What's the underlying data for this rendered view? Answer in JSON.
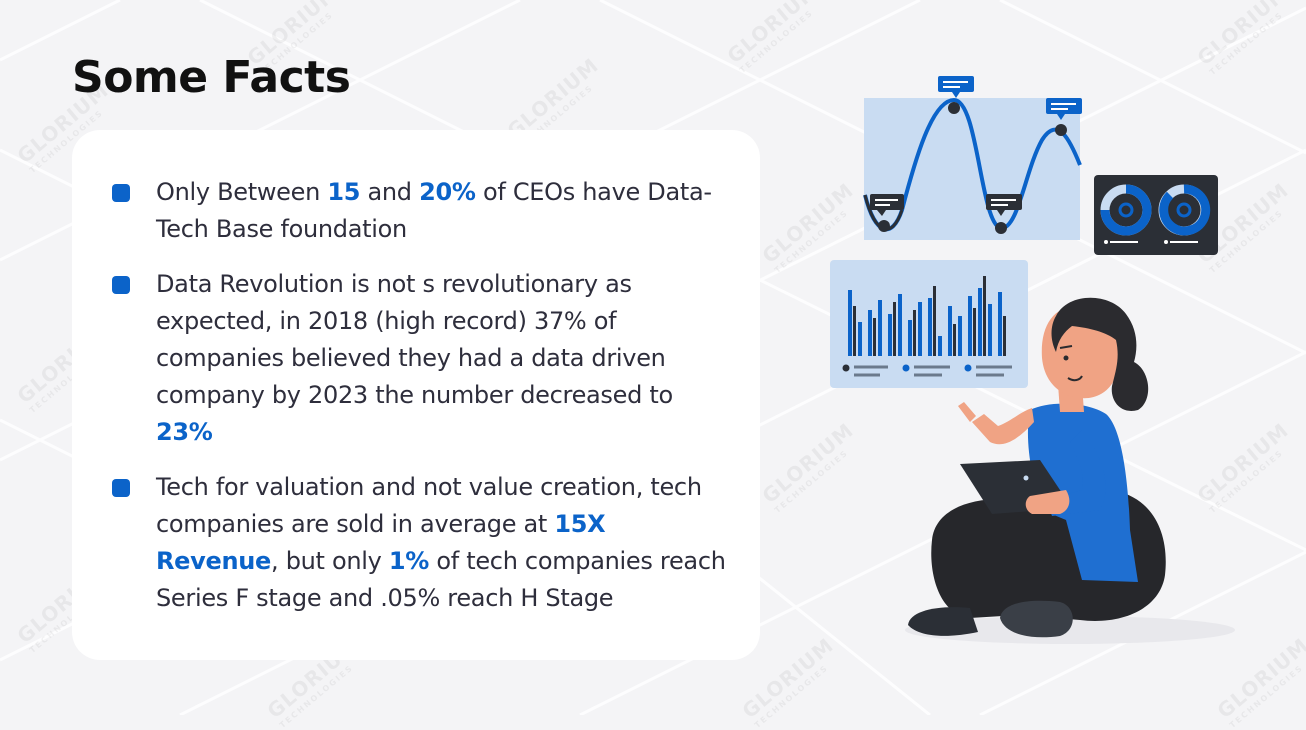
{
  "title": "Some Facts",
  "watermark": {
    "brand": "GLORIUM",
    "sub": "TECHNOLOGIES"
  },
  "facts": [
    {
      "parts": [
        {
          "text": "Only Between ",
          "highlight": false
        },
        {
          "text": "15",
          "highlight": true
        },
        {
          "text": " and ",
          "highlight": false
        },
        {
          "text": "20%",
          "highlight": true
        },
        {
          "text": " of CEOs have Data-Tech Base foundation",
          "highlight": false
        }
      ]
    },
    {
      "parts": [
        {
          "text": "Data Revolution is not s revolutionary as expected, in 2018 (high record) 37% of companies believed they had a data driven company by 2023 the number decreased to ",
          "highlight": false
        },
        {
          "text": "23%",
          "highlight": true
        }
      ]
    },
    {
      "parts": [
        {
          "text": "Tech for valuation and not value creation, tech companies are sold in average at ",
          "highlight": false
        },
        {
          "text": "15X Revenue",
          "highlight": true
        },
        {
          "text": ", but only ",
          "highlight": false
        },
        {
          "text": "1%",
          "highlight": true
        },
        {
          "text": " of tech companies reach Series F stage and .05% reach H Stage",
          "highlight": false
        }
      ]
    }
  ],
  "colors": {
    "accent": "#0b63c9",
    "panel": "#c9dcf2",
    "dark": "#2b2f36",
    "shirt": "#1f6fd1",
    "skin": "#f0a384",
    "hair": "#2b2b2f",
    "pants": "#26272b"
  },
  "icons": [
    "square-bullet-icon",
    "line-chart-icon",
    "donut-chart-icon",
    "bar-chart-icon",
    "tablet-icon"
  ]
}
